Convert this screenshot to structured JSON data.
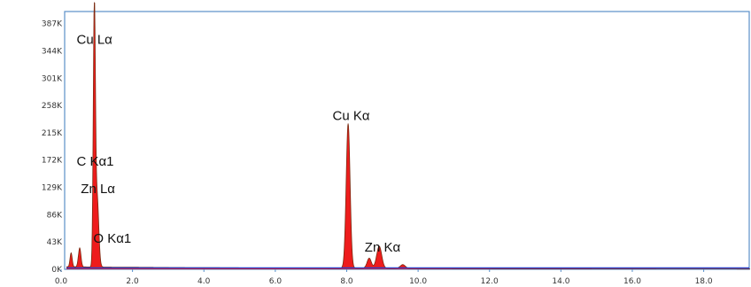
{
  "chart_data": {
    "type": "area",
    "title": "",
    "xlabel": "",
    "ylabel": "",
    "xlim": [
      0,
      19.3
    ],
    "ylim": [
      0,
      420000
    ],
    "x_ticks": [
      {
        "value": 0,
        "label": "0.0"
      },
      {
        "value": 2,
        "label": "2.0"
      },
      {
        "value": 4,
        "label": "4.0"
      },
      {
        "value": 6,
        "label": "6.0"
      },
      {
        "value": 8,
        "label": "8.0"
      },
      {
        "value": 10,
        "label": "10.0"
      },
      {
        "value": 12,
        "label": "12.0"
      },
      {
        "value": 14,
        "label": "14.0"
      },
      {
        "value": 16,
        "label": "16.0"
      },
      {
        "value": 18,
        "label": "18.0"
      }
    ],
    "y_ticks": [
      {
        "value": 0,
        "label": "0K"
      },
      {
        "value": 43000,
        "label": "43K"
      },
      {
        "value": 86000,
        "label": "86K"
      },
      {
        "value": 129000,
        "label": "129K"
      },
      {
        "value": 172000,
        "label": "172K"
      },
      {
        "value": 215000,
        "label": "215K"
      },
      {
        "value": 258000,
        "label": "258K"
      },
      {
        "value": 301000,
        "label": "301K"
      },
      {
        "value": 344000,
        "label": "344K"
      },
      {
        "value": 387000,
        "label": "387K"
      }
    ],
    "spectrum": {
      "background": 4000,
      "peaks": [
        {
          "energy": 0.28,
          "counts": 22000,
          "width": 0.03
        },
        {
          "energy": 0.52,
          "counts": 30000,
          "width": 0.035
        },
        {
          "energy": 0.93,
          "counts": 405000,
          "width": 0.03
        },
        {
          "energy": 1.01,
          "counts": 110000,
          "width": 0.045
        },
        {
          "energy": 8.04,
          "counts": 228000,
          "width": 0.055
        },
        {
          "energy": 8.63,
          "counts": 16000,
          "width": 0.06
        },
        {
          "energy": 8.91,
          "counts": 35000,
          "width": 0.07
        },
        {
          "energy": 9.57,
          "counts": 6000,
          "width": 0.07
        }
      ]
    },
    "annotations": [
      {
        "text": "Cu Lα",
        "energy": 0.93,
        "counts": 355000
      },
      {
        "text": "C  Kα1",
        "energy": 0.93,
        "counts": 163000
      },
      {
        "text": "Zn Lα",
        "energy": 1.05,
        "counts": 120000
      },
      {
        "text": "O  Kα1",
        "energy": 1.4,
        "counts": 42000
      },
      {
        "text": "Cu Kα",
        "energy": 8.1,
        "counts": 235000
      },
      {
        "text": "Zn Kα",
        "energy": 9.0,
        "counts": 28000
      }
    ],
    "colors": {
      "fill": "#ee1c1c",
      "stroke": "#7a2a10",
      "baseline": "#2a3fc8",
      "axis": "#5b8fc9"
    }
  }
}
